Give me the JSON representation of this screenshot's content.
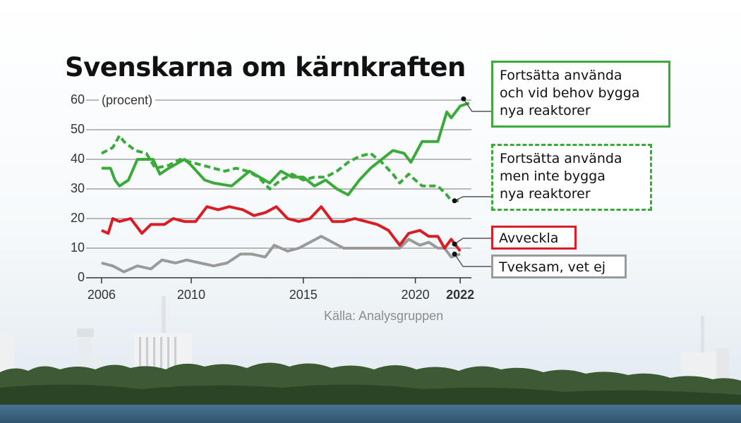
{
  "title": "Svenskarna om kärnkraften",
  "source": "Källa: Analysgruppen",
  "unit_label": "(procent)",
  "colors": {
    "green": "#3aab3a",
    "red": "#d81e24",
    "gray": "#9a9a9a",
    "grid": "#777777"
  },
  "chart_data": {
    "type": "line",
    "ylim": [
      0,
      60
    ],
    "xlim": [
      2005.5,
      2022.5
    ],
    "y_ticks": [
      "0",
      "10",
      "20",
      "30",
      "40",
      "50",
      "60"
    ],
    "x_ticks": [
      {
        "value": 2006,
        "label": "2006",
        "bold": false
      },
      {
        "value": 2010,
        "label": "2010",
        "bold": false
      },
      {
        "value": 2015,
        "label": "2015",
        "bold": false
      },
      {
        "value": 2020,
        "label": "2020",
        "bold": false
      },
      {
        "value": 2022,
        "label": "2022",
        "bold": true
      }
    ],
    "series": [
      {
        "name": "Fortsätta använda och vid behov bygga nya reaktorer",
        "color": "#3aab3a",
        "dashed": false,
        "x": [
          2006,
          2006.4,
          2006.6,
          2006.8,
          2007.2,
          2007.6,
          2008.3,
          2008.6,
          2009,
          2009.7,
          2010,
          2010.6,
          2011,
          2011.8,
          2012.6,
          2013.5,
          2014,
          2014.5,
          2015,
          2015.5,
          2016,
          2016.5,
          2017,
          2017.5,
          2018,
          2019,
          2019.5,
          2019.8,
          2020.3,
          2020.6,
          2021,
          2021.4,
          2021.6,
          2022,
          2022.4
        ],
        "y": [
          37,
          37,
          33,
          31,
          33,
          40,
          40,
          35,
          37,
          40,
          38,
          33,
          32,
          31,
          36,
          32,
          36,
          34,
          34,
          31,
          33,
          30,
          28,
          33,
          37,
          43,
          42,
          39,
          46,
          46,
          46,
          56,
          54,
          58,
          59
        ]
      },
      {
        "name": "Fortsätta använda men inte bygga nya reaktorer",
        "color": "#3aab3a",
        "dashed": true,
        "x": [
          2006,
          2006.5,
          2006.8,
          2007,
          2007.5,
          2008,
          2008.4,
          2009,
          2009.5,
          2010,
          2010.5,
          2011,
          2011.5,
          2012,
          2012.5,
          2013,
          2013.5,
          2014,
          2014.5,
          2015,
          2015.5,
          2016,
          2016.5,
          2017,
          2017.5,
          2018,
          2018.5,
          2019,
          2019.3,
          2019.7,
          2020.3,
          2020.8,
          2021,
          2021.4,
          2021.6,
          2022
        ],
        "y": [
          42,
          44,
          48,
          46,
          43,
          42,
          37,
          38,
          40,
          39,
          38,
          37,
          36,
          37,
          36,
          34,
          30,
          33,
          35,
          33,
          34,
          34,
          36,
          39,
          41,
          42,
          39,
          35,
          32,
          35,
          31,
          31,
          31,
          28,
          26,
          26
        ]
      },
      {
        "name": "Avveckla",
        "color": "#d81e24",
        "dashed": false,
        "x": [
          2006,
          2006.3,
          2006.5,
          2006.8,
          2007.3,
          2007.8,
          2008.2,
          2008.8,
          2009.2,
          2009.7,
          2010.2,
          2010.7,
          2011.2,
          2011.7,
          2012.3,
          2012.8,
          2013.3,
          2013.8,
          2014.3,
          2014.8,
          2015.3,
          2015.8,
          2016.3,
          2016.8,
          2017.3,
          2017.8,
          2018.3,
          2018.8,
          2019.3,
          2019.7,
          2020.2,
          2020.6,
          2021,
          2021.3,
          2021.6,
          2022
        ],
        "y": [
          16,
          15,
          20,
          19,
          20,
          15,
          18,
          18,
          20,
          19,
          19,
          24,
          23,
          24,
          23,
          21,
          22,
          24,
          20,
          19,
          20,
          24,
          19,
          19,
          20,
          19,
          18,
          16,
          11,
          15,
          16,
          14,
          14,
          10,
          13,
          9
        ]
      },
      {
        "name": "Tveksam, vet ej",
        "color": "#9a9a9a",
        "dashed": false,
        "x": [
          2006,
          2006.5,
          2007,
          2007.6,
          2008.2,
          2008.7,
          2009.3,
          2009.8,
          2010.4,
          2011,
          2011.6,
          2012.2,
          2012.7,
          2013.3,
          2013.7,
          2014.3,
          2014.8,
          2015.3,
          2015.8,
          2016.3,
          2016.8,
          2017.3,
          2017.8,
          2018.3,
          2018.8,
          2019.3,
          2019.7,
          2020.2,
          2020.6,
          2021,
          2021.3,
          2021.6,
          2022
        ],
        "y": [
          5,
          4,
          2,
          4,
          3,
          6,
          5,
          6,
          5,
          4,
          5,
          8,
          8,
          7,
          11,
          9,
          10,
          12,
          14,
          12,
          10,
          10,
          10,
          10,
          10,
          10,
          13,
          11,
          12,
          10,
          10,
          7,
          8
        ]
      }
    ],
    "labels": [
      {
        "lines": [
          "Fortsätta använda",
          "och vid behov bygga",
          "nya reaktorer"
        ],
        "series": 0
      },
      {
        "lines": [
          "Fortsätta använda",
          "men inte bygga",
          "nya reaktorer"
        ],
        "series": 1
      },
      {
        "lines": [
          "Avveckla"
        ],
        "series": 2
      },
      {
        "lines": [
          "Tveksam, vet ej"
        ],
        "series": 3
      }
    ]
  }
}
